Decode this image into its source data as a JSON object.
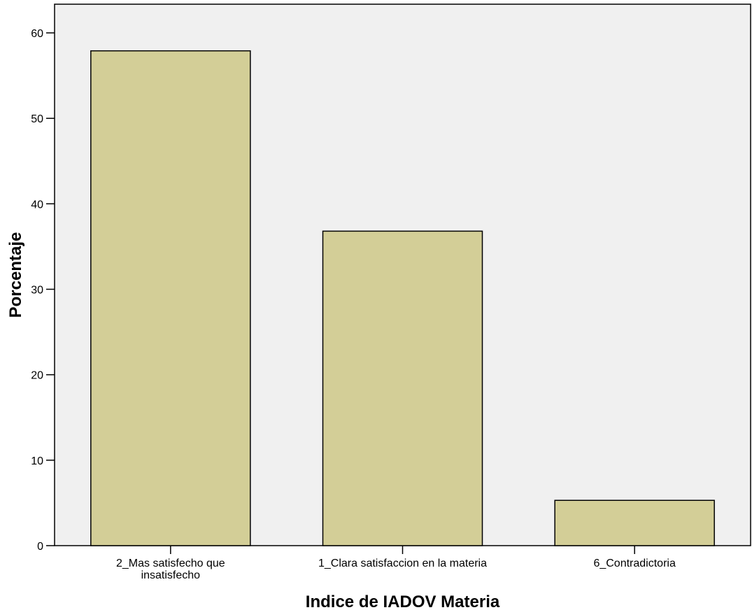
{
  "chart_data": {
    "type": "bar",
    "title": "",
    "xlabel": "Indice de IADOV Materia",
    "ylabel": "Porcentaje",
    "categories": [
      [
        "2_Mas satisfecho que",
        "insatisfecho"
      ],
      [
        "1_Clara satisfaccion en la materia"
      ],
      [
        "6_Contradictoria"
      ]
    ],
    "values": [
      57.9,
      36.8,
      5.3
    ],
    "ylim": [
      0,
      60
    ],
    "yticks": [
      0,
      10,
      20,
      30,
      40,
      50,
      60
    ],
    "grid": false,
    "legend": "none"
  },
  "colors": {
    "plot_background": "#f0f0f0",
    "bar_fill": "#d3ce97",
    "bar_stroke": "#000000",
    "axis": "#000000"
  }
}
